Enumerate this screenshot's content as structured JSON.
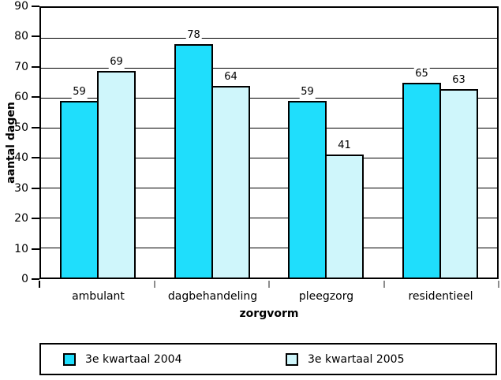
{
  "chart_data": {
    "type": "bar",
    "categories": [
      "ambulant",
      "dagbehandeling",
      "pleegzorg",
      "residentieel"
    ],
    "series": [
      {
        "name": "3e kwartaal 2004",
        "color": "#1FDEFC",
        "values": [
          59,
          78,
          59,
          65
        ]
      },
      {
        "name": "3e kwartaal 2005",
        "color": "#CFF6FB",
        "values": [
          69,
          64,
          41,
          63
        ]
      }
    ],
    "xlabel": "zorgvorm",
    "ylabel": "aantal dagen",
    "ylim": [
      0,
      90
    ],
    "ytick_step": 10,
    "grid": true,
    "bar_value_labels": true,
    "legend_position": "bottom",
    "colors": {
      "axis": "#000000",
      "gridline": "#000000",
      "boundary_tick": "#8d8d8d",
      "background": "#ffffff"
    }
  }
}
